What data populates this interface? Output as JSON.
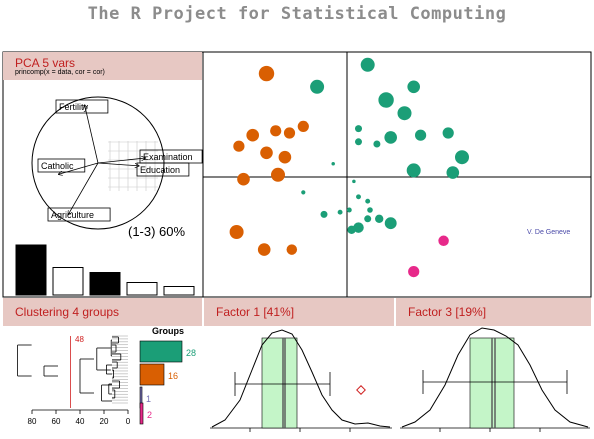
{
  "title": "The R Project for Statistical Computing",
  "pca_panel": {
    "title": "PCA  5 vars",
    "subtitle": "princomp(x = data, cor = cor)",
    "variables": [
      {
        "name": "Fertility",
        "angle": 103
      },
      {
        "name": "Catholic",
        "angle": 196
      },
      {
        "name": "Examination",
        "angle": 6
      },
      {
        "name": "Education",
        "angle": -4
      },
      {
        "name": "Agriculture",
        "angle": 240
      }
    ],
    "axes_label": "(1-3) 60%",
    "scree_values": [
      1.0,
      0.55,
      0.45,
      0.25,
      0.17
    ]
  },
  "scatter": {
    "credit": "V. De Geneve",
    "colors": {
      "orange": "#d95f02",
      "green": "#1b9e77",
      "magenta": "#e7298a"
    },
    "points": [
      {
        "x": -1.75,
        "y": 2.35,
        "r": 1.1,
        "g": "orange"
      },
      {
        "x": 0.45,
        "y": 2.55,
        "r": 1.0,
        "g": "green"
      },
      {
        "x": -0.65,
        "y": 2.05,
        "r": 1.0,
        "g": "green"
      },
      {
        "x": 1.45,
        "y": 2.05,
        "r": 0.9,
        "g": "green"
      },
      {
        "x": 0.85,
        "y": 1.75,
        "r": 1.1,
        "g": "green"
      },
      {
        "x": 1.25,
        "y": 1.45,
        "r": 1.0,
        "g": "green"
      },
      {
        "x": -2.05,
        "y": 0.95,
        "r": 0.9,
        "g": "orange"
      },
      {
        "x": -1.55,
        "y": 1.05,
        "r": 0.8,
        "g": "orange"
      },
      {
        "x": -1.25,
        "y": 1.0,
        "r": 0.8,
        "g": "orange"
      },
      {
        "x": -0.95,
        "y": 1.15,
        "r": 0.8,
        "g": "orange"
      },
      {
        "x": -2.35,
        "y": 0.7,
        "r": 0.8,
        "g": "orange"
      },
      {
        "x": -1.75,
        "y": 0.55,
        "r": 0.9,
        "g": "orange"
      },
      {
        "x": -1.35,
        "y": 0.45,
        "r": 0.9,
        "g": "orange"
      },
      {
        "x": -1.5,
        "y": 0.05,
        "r": 1.0,
        "g": "orange"
      },
      {
        "x": -2.25,
        "y": -0.05,
        "r": 0.9,
        "g": "orange"
      },
      {
        "x": 0.25,
        "y": 1.1,
        "r": 0.5,
        "g": "green"
      },
      {
        "x": 0.25,
        "y": 0.8,
        "r": 0.5,
        "g": "green"
      },
      {
        "x": 0.65,
        "y": 0.75,
        "r": 0.5,
        "g": "green"
      },
      {
        "x": 0.95,
        "y": 0.9,
        "r": 0.9,
        "g": "green"
      },
      {
        "x": 1.6,
        "y": 0.95,
        "r": 0.8,
        "g": "green"
      },
      {
        "x": 2.2,
        "y": 1.0,
        "r": 0.8,
        "g": "green"
      },
      {
        "x": 2.5,
        "y": 0.45,
        "r": 1.0,
        "g": "green"
      },
      {
        "x": 1.45,
        "y": 0.15,
        "r": 1.0,
        "g": "green"
      },
      {
        "x": 2.3,
        "y": 0.1,
        "r": 0.9,
        "g": "green"
      },
      {
        "x": -0.3,
        "y": 0.3,
        "r": 0.25,
        "g": "green"
      },
      {
        "x": 0.15,
        "y": -0.1,
        "r": 0.25,
        "g": "green"
      },
      {
        "x": -0.95,
        "y": -0.35,
        "r": 0.3,
        "g": "green"
      },
      {
        "x": 0.25,
        "y": -0.45,
        "r": 0.35,
        "g": "green"
      },
      {
        "x": 0.45,
        "y": -0.55,
        "r": 0.35,
        "g": "green"
      },
      {
        "x": 0.05,
        "y": -0.75,
        "r": 0.35,
        "g": "green"
      },
      {
        "x": 0.5,
        "y": -0.75,
        "r": 0.4,
        "g": "green"
      },
      {
        "x": 0.45,
        "y": -0.95,
        "r": 0.5,
        "g": "green"
      },
      {
        "x": -0.5,
        "y": -0.85,
        "r": 0.5,
        "g": "green"
      },
      {
        "x": -0.15,
        "y": -0.8,
        "r": 0.35,
        "g": "green"
      },
      {
        "x": 0.7,
        "y": -0.95,
        "r": 0.6,
        "g": "green"
      },
      {
        "x": 0.95,
        "y": -1.05,
        "r": 0.85,
        "g": "green"
      },
      {
        "x": 0.25,
        "y": -1.15,
        "r": 0.75,
        "g": "green"
      },
      {
        "x": 0.1,
        "y": -1.2,
        "r": 0.6,
        "g": "green"
      },
      {
        "x": -2.4,
        "y": -1.25,
        "r": 1.0,
        "g": "orange"
      },
      {
        "x": -1.8,
        "y": -1.65,
        "r": 0.9,
        "g": "orange"
      },
      {
        "x": -1.2,
        "y": -1.65,
        "r": 0.75,
        "g": "orange"
      },
      {
        "x": 2.1,
        "y": -1.45,
        "r": 0.75,
        "g": "magenta"
      },
      {
        "x": 1.45,
        "y": -2.15,
        "r": 0.8,
        "g": "magenta"
      }
    ]
  },
  "cluster_panel": {
    "title": "Clustering  4 groups",
    "cut_label": "48",
    "cut_height": 48,
    "groups_title": "Groups",
    "groups": [
      {
        "count": "28",
        "value": 28,
        "color": "#1b9e77"
      },
      {
        "count": "16",
        "value": 16,
        "color": "#d95f02"
      },
      {
        "count": "1",
        "value": 1,
        "color": "#7570b3"
      },
      {
        "count": "2",
        "value": 2,
        "color": "#e7298a"
      }
    ],
    "axis_ticks": [
      "80",
      "60",
      "40",
      "20",
      "0"
    ],
    "tick_values": [
      80,
      60,
      40,
      20,
      0
    ]
  },
  "factor1_panel": {
    "title": "Factor 1 [41%]"
  },
  "factor3_panel": {
    "title": "Factor 3 [19%]"
  }
}
